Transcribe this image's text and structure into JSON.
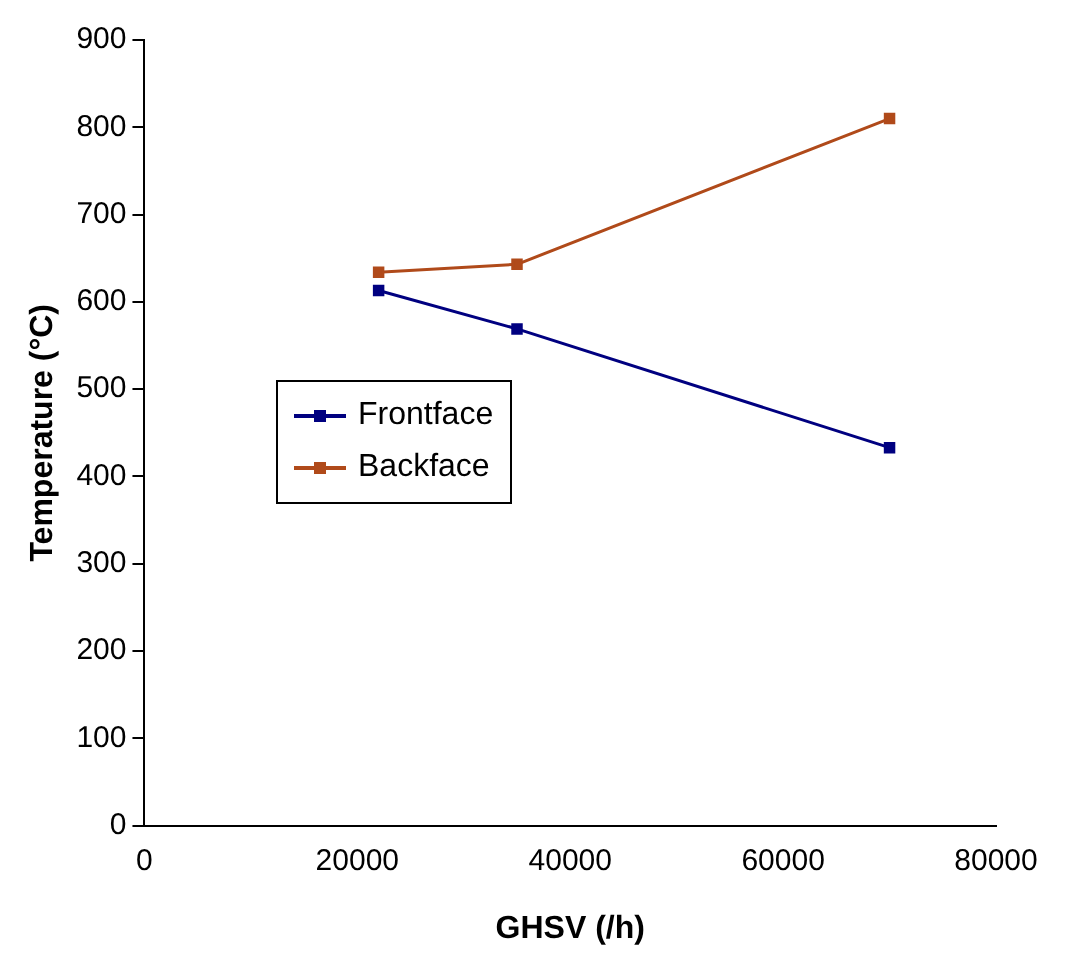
{
  "chart_data": {
    "type": "line",
    "xlabel": "GHSV (/h)",
    "ylabel": "Temperature (°C)",
    "x": [
      22000,
      35000,
      70000
    ],
    "series": [
      {
        "name": "Frontface",
        "color": "#000080",
        "values": [
          613,
          569,
          433
        ]
      },
      {
        "name": "Backface",
        "color": "#b04a1a",
        "values": [
          634,
          643,
          810
        ]
      }
    ],
    "xlim": [
      0,
      80000
    ],
    "xticks": [
      0,
      20000,
      40000,
      60000,
      80000
    ],
    "ylim": [
      0,
      900
    ],
    "yticks": [
      0,
      100,
      200,
      300,
      400,
      500,
      600,
      700,
      800,
      900
    ],
    "grid": false,
    "legend": "left",
    "marker": "square",
    "line_style": "solid"
  }
}
